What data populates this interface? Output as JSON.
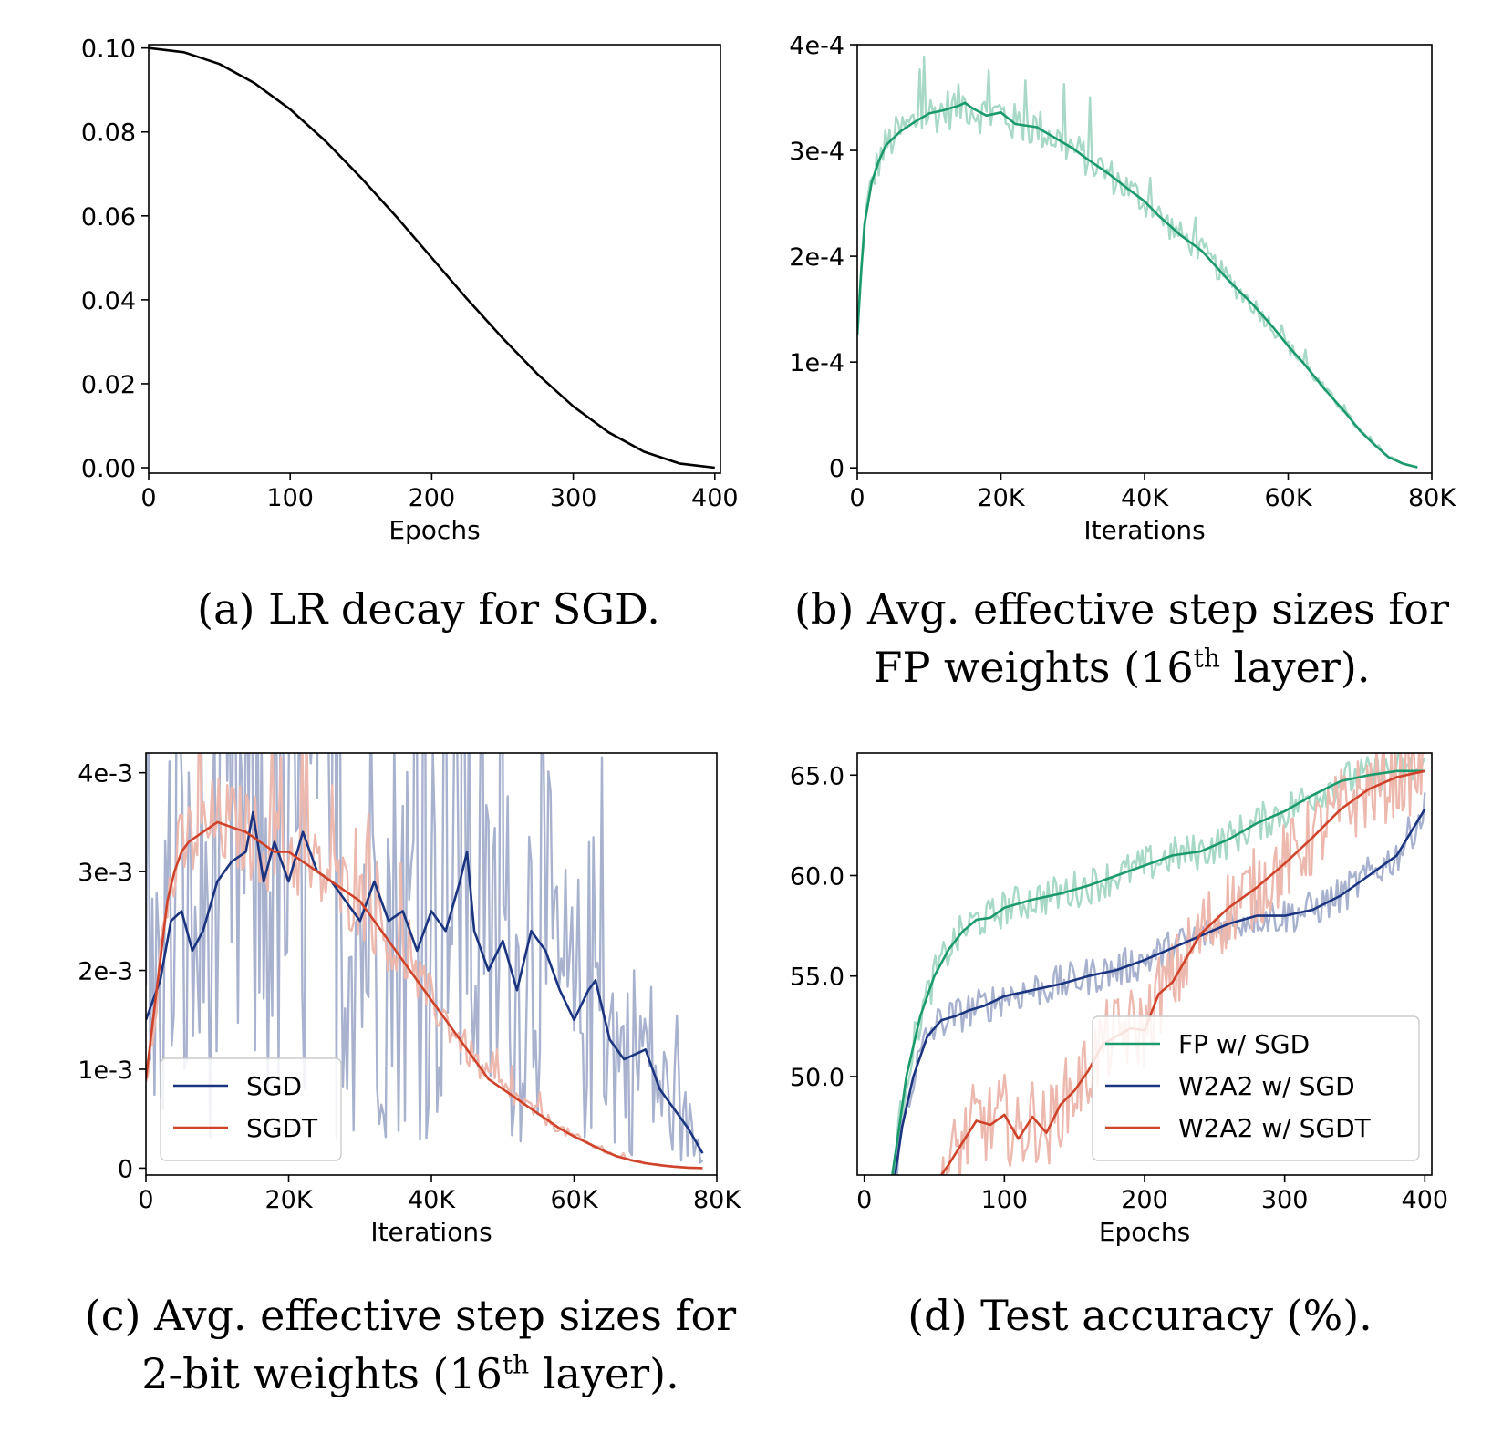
{
  "panels": {
    "a": {
      "caption": "(a) LR decay for SGD."
    },
    "b": {
      "caption_line1": "(b) Avg. effective step sizes for",
      "caption_line2_pre": "FP weights (16",
      "caption_sup": "th",
      "caption_line2_post": " layer)."
    },
    "c": {
      "caption_line1": "(c) Avg. effective step sizes for",
      "caption_line2_pre": "2-bit weights (16",
      "caption_sup": "th",
      "caption_line2_post": " layer)."
    },
    "d": {
      "caption": "(d) Test accuracy (%)."
    }
  },
  "chart_data": [
    {
      "id": "a",
      "type": "line",
      "xlabel": "Epochs",
      "ylabel": "",
      "xlim": [
        0,
        404
      ],
      "ylim": [
        -0.0013,
        0.1008
      ],
      "xticks": [
        0,
        100,
        200,
        300,
        400
      ],
      "xticklabels": [
        "0",
        "100",
        "200",
        "300",
        "400"
      ],
      "yticks": [
        0,
        0.02,
        0.04,
        0.06,
        0.08,
        0.1
      ],
      "yticklabels": [
        "0.00",
        "0.02",
        "0.04",
        "0.06",
        "0.08",
        "0.10"
      ],
      "grid": false,
      "legend": null,
      "series": [
        {
          "color": "#000000",
          "x": [
            0,
            25,
            50,
            75,
            100,
            125,
            150,
            175,
            200,
            225,
            250,
            275,
            300,
            325,
            350,
            375,
            400
          ],
          "y": [
            0.1,
            0.099,
            0.0962,
            0.0916,
            0.0854,
            0.0778,
            0.0691,
            0.0598,
            0.05,
            0.0402,
            0.0309,
            0.0222,
            0.0146,
            0.0084,
            0.0038,
            0.001,
            0.0
          ]
        }
      ]
    },
    {
      "id": "b",
      "type": "line",
      "xlabel": "Iterations",
      "ylabel": "",
      "xlim": [
        0,
        80000
      ],
      "ylim": [
        -5e-06,
        0.0004
      ],
      "xticks": [
        0,
        20000,
        40000,
        60000,
        80000
      ],
      "xticklabels": [
        "0",
        "20K",
        "40K",
        "60K",
        "80K"
      ],
      "yticks": [
        0,
        0.0001,
        0.0002,
        0.0003,
        0.0004
      ],
      "yticklabels": [
        "0",
        "1e-4",
        "2e-4",
        "3e-4",
        "4e-4"
      ],
      "grid": false,
      "legend": null,
      "series": [
        {
          "color": "#1b9a6c",
          "x": [
            0,
            500,
            1000,
            2000,
            3000,
            4000,
            6000,
            8000,
            10000,
            12000,
            14000,
            15000,
            16000,
            18000,
            20000,
            22000,
            25000,
            28000,
            30000,
            32000,
            35000,
            38000,
            40000,
            42000,
            45000,
            48000,
            50000,
            52000,
            55000,
            58000,
            60000,
            62000,
            65000,
            68000,
            70000,
            72000,
            74000,
            76000,
            78000
          ],
          "y": [
            0.000125,
            0.00018,
            0.00023,
            0.00027,
            0.00029,
            0.000305,
            0.000318,
            0.000327,
            0.000335,
            0.000338,
            0.000342,
            0.000345,
            0.00034,
            0.000333,
            0.000336,
            0.000325,
            0.000322,
            0.00031,
            0.000302,
            0.000292,
            0.000278,
            0.000262,
            0.000252,
            0.000238,
            0.00022,
            0.000205,
            0.00019,
            0.000175,
            0.000155,
            0.000132,
            0.000115,
            0.0001,
            7.5e-05,
            5.2e-05,
            3.5e-05,
            2.2e-05,
            1e-05,
            4e-06,
            5e-07
          ]
        }
      ]
    },
    {
      "id": "c",
      "type": "line",
      "xlabel": "Iterations",
      "ylabel": "",
      "xlim": [
        0,
        80000
      ],
      "ylim": [
        -7e-05,
        0.0042
      ],
      "xticks": [
        0,
        20000,
        40000,
        60000,
        80000
      ],
      "xticklabels": [
        "0",
        "20K",
        "40K",
        "60K",
        "80K"
      ],
      "yticks": [
        0,
        0.001,
        0.002,
        0.003,
        0.004
      ],
      "yticklabels": [
        "0",
        "1e-3",
        "2e-3",
        "3e-3",
        "4e-3"
      ],
      "grid": false,
      "legend": {
        "position": "lower left"
      },
      "series": [
        {
          "name": "SGD",
          "color": "#1b3480",
          "x": [
            0,
            2000,
            3500,
            5000,
            6500,
            8000,
            10000,
            12000,
            14000,
            15000,
            16500,
            18000,
            20000,
            22000,
            24000,
            26000,
            28000,
            30000,
            32000,
            34000,
            36000,
            38000,
            40000,
            42000,
            44000,
            45000,
            46000,
            48000,
            50000,
            52000,
            54000,
            56000,
            58000,
            60000,
            62000,
            63000,
            65000,
            67000,
            70000,
            72000,
            74000,
            76000,
            78000
          ],
          "y": [
            0.0015,
            0.0019,
            0.0025,
            0.0026,
            0.0022,
            0.0024,
            0.0029,
            0.0031,
            0.0032,
            0.0036,
            0.0029,
            0.0033,
            0.0029,
            0.0034,
            0.003,
            0.0029,
            0.0027,
            0.0025,
            0.0029,
            0.0025,
            0.0026,
            0.0022,
            0.0026,
            0.0024,
            0.0029,
            0.0032,
            0.0024,
            0.002,
            0.0023,
            0.0018,
            0.0024,
            0.0022,
            0.0018,
            0.0015,
            0.0018,
            0.0019,
            0.0013,
            0.0011,
            0.0012,
            0.0008,
            0.0006,
            0.0004,
            0.00015
          ]
        },
        {
          "name": "SGDT",
          "color": "#d0432b",
          "x": [
            0,
            1000,
            2000,
            3000,
            4000,
            5000,
            6000,
            8000,
            10000,
            12000,
            14000,
            16000,
            18000,
            20000,
            22000,
            24000,
            26000,
            28000,
            30000,
            32000,
            34000,
            36000,
            38000,
            40000,
            42000,
            44000,
            46000,
            48000,
            50000,
            52000,
            54000,
            56000,
            58000,
            60000,
            62000,
            64000,
            66000,
            68000,
            70000,
            72000,
            74000,
            76000,
            78000
          ],
          "y": [
            0.0009,
            0.0015,
            0.0021,
            0.0027,
            0.003,
            0.0032,
            0.0033,
            0.0034,
            0.0035,
            0.00345,
            0.0034,
            0.0033,
            0.0032,
            0.0032,
            0.0031,
            0.003,
            0.0029,
            0.0028,
            0.0027,
            0.0025,
            0.0023,
            0.0021,
            0.0019,
            0.0017,
            0.0015,
            0.0013,
            0.0011,
            0.0009,
            0.0008,
            0.0007,
            0.0006,
            0.0005,
            0.0004,
            0.00032,
            0.00025,
            0.00018,
            0.00012,
            8e-05,
            5e-05,
            3e-05,
            1.5e-05,
            5e-06,
            0.0
          ]
        }
      ]
    },
    {
      "id": "d",
      "type": "line",
      "xlabel": "Epochs",
      "ylabel": "",
      "xlim": [
        -5,
        405
      ],
      "ylim": [
        45.1,
        66.1
      ],
      "xticks": [
        0,
        100,
        200,
        300,
        400
      ],
      "xticklabels": [
        "0",
        "100",
        "200",
        "300",
        "400"
      ],
      "yticks": [
        50,
        55,
        60,
        65
      ],
      "yticklabels": [
        "50.0",
        "55.0",
        "60.0",
        "65.0"
      ],
      "grid": false,
      "legend": {
        "position": "lower right"
      },
      "series": [
        {
          "name": "FP w/ SGD",
          "color": "#1b9a6c",
          "x": [
            20,
            25,
            30,
            40,
            50,
            60,
            70,
            80,
            90,
            100,
            120,
            140,
            160,
            180,
            200,
            220,
            240,
            260,
            280,
            300,
            320,
            340,
            360,
            380,
            400
          ],
          "y": [
            45.1,
            47.5,
            50.0,
            53.0,
            55.0,
            56.3,
            57.2,
            57.8,
            57.9,
            58.4,
            58.8,
            59.1,
            59.5,
            60.0,
            60.5,
            61.0,
            61.2,
            61.8,
            62.6,
            63.2,
            64.0,
            64.7,
            65.0,
            65.2,
            65.2
          ]
        },
        {
          "name": "W2A2 w/ SGD",
          "color": "#1b3480",
          "x": [
            22,
            27,
            35,
            45,
            55,
            65,
            75,
            85,
            100,
            120,
            140,
            160,
            180,
            200,
            220,
            240,
            260,
            280,
            300,
            320,
            340,
            360,
            380,
            400
          ],
          "y": [
            45.1,
            47.5,
            50.0,
            52.0,
            52.8,
            53.0,
            53.3,
            53.5,
            54.0,
            54.3,
            54.6,
            55.0,
            55.3,
            55.8,
            56.4,
            57.0,
            57.6,
            58.0,
            58.0,
            58.3,
            59.0,
            60.0,
            61.0,
            63.3
          ]
        },
        {
          "name": "W2A2 w/ SGDT",
          "color": "#d0432b",
          "x": [
            55,
            60,
            70,
            80,
            90,
            100,
            110,
            120,
            130,
            140,
            150,
            160,
            170,
            180,
            190,
            200,
            210,
            220,
            240,
            260,
            280,
            300,
            320,
            340,
            360,
            380,
            400
          ],
          "y": [
            45.1,
            45.6,
            46.7,
            47.8,
            47.6,
            48.1,
            46.9,
            48.0,
            47.2,
            48.6,
            49.3,
            50.3,
            51.6,
            52.0,
            52.4,
            52.3,
            54.1,
            54.7,
            57.1,
            58.4,
            59.4,
            60.6,
            61.9,
            63.3,
            64.3,
            64.9,
            65.2
          ]
        }
      ]
    }
  ]
}
